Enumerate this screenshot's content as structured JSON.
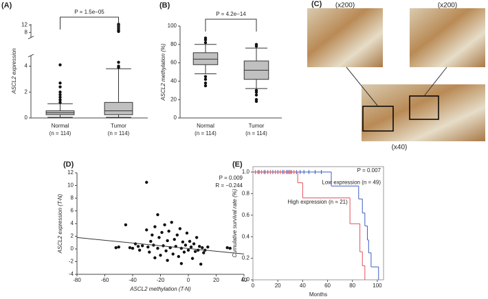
{
  "chart_data": [
    {
      "type": "box",
      "label": "(A)",
      "ylabel": "ASCL2 expression",
      "annotation": "P = 1.5e−05",
      "categories": [
        "Normal",
        "Tumor"
      ],
      "category_sublabels": [
        "(n = 114)",
        "(n = 114)"
      ],
      "ylim": [
        0,
        12.5
      ],
      "ybreak": [
        4.5,
        7.5
      ],
      "yticks": [
        0,
        2,
        4,
        8,
        12
      ],
      "color": "#c0c0c0",
      "boxes": [
        {
          "whisker_low": 0.05,
          "q1": 0.25,
          "median": 0.4,
          "q3": 0.55,
          "whisker_high": 1.1,
          "outliers": [
            1.2,
            1.4,
            1.6,
            1.8,
            2.0,
            2.4,
            2.7,
            4.1
          ]
        },
        {
          "whisker_low": 0.05,
          "q1": 0.25,
          "median": 0.55,
          "q3": 1.2,
          "whisker_high": 3.8,
          "outliers": [
            3.9,
            4.0,
            4.3,
            8.5,
            9,
            10,
            11,
            12,
            12.4
          ]
        }
      ]
    },
    {
      "type": "box",
      "label": "(B)",
      "ylabel": "ASCL2 methylation (%)",
      "annotation": "P = 4.2e−14",
      "categories": [
        "Normal",
        "Tumor"
      ],
      "category_sublabels": [
        "(n = 114)",
        "(n = 114)"
      ],
      "ylim": [
        0,
        100
      ],
      "yticks": [
        0,
        20,
        40,
        60,
        80,
        100
      ],
      "color": "#c0c0c0",
      "boxes": [
        {
          "whisker_low": 48,
          "q1": 58,
          "median": 64,
          "q3": 71,
          "whisker_high": 80,
          "outliers": [
            35,
            38,
            42,
            45,
            82,
            85,
            87
          ]
        },
        {
          "whisker_low": 32,
          "q1": 42,
          "median": 52,
          "q3": 62,
          "whisker_high": 76,
          "outliers": [
            18,
            20,
            25,
            28,
            30,
            78,
            80
          ]
        }
      ]
    },
    {
      "type": "image",
      "label": "(C)",
      "captions": [
        "(x200)",
        "(x200)",
        "(x40)"
      ]
    },
    {
      "type": "scatter",
      "label": "(D)",
      "xlabel": "ASCL2 methylation (T-N)",
      "ylabel": "ASCL2 expression (T-N)",
      "annotations": [
        "P = 0.009",
        "R = −0.244"
      ],
      "xlim": [
        -80,
        40
      ],
      "xticks": [
        -80,
        -60,
        -40,
        -20,
        0,
        20,
        40
      ],
      "ylim": [
        -4,
        12
      ],
      "yticks": [
        -4,
        -2,
        0,
        2,
        4,
        6,
        8,
        10,
        12
      ],
      "color": "#111111",
      "x": [
        -50,
        -45,
        -42,
        -38,
        -35,
        -33,
        -30,
        -30,
        -29,
        -28,
        -27,
        -26,
        -25,
        -24,
        -22,
        -22,
        -21,
        -20,
        -19,
        -18,
        -17,
        -16,
        -15,
        -14,
        -13,
        -12,
        -11,
        -10,
        -9,
        -8,
        -7,
        -6,
        -5,
        -4,
        -3,
        -2,
        -1,
        0,
        1,
        2,
        3,
        4,
        5,
        6,
        7,
        8,
        9,
        10,
        11,
        12,
        14,
        28,
        30,
        -52,
        -40,
        -36,
        -15,
        -5,
        -24
      ],
      "values": [
        0.3,
        3.8,
        0.2,
        0.8,
        -0.2,
        0.5,
        10.5,
        3,
        0.3,
        -0.5,
        1.2,
        2.2,
        0.6,
        3.5,
        5.4,
        0.1,
        1.8,
        -1,
        2.6,
        0.5,
        3.8,
        -0.3,
        1.3,
        2.8,
        0.2,
        4.2,
        -0.8,
        1.5,
        0.4,
        2.2,
        -1.2,
        3.2,
        0.1,
        1.1,
        -0.5,
        0.6,
        2.5,
        -0.2,
        1.2,
        0.3,
        -1.5,
        0.8,
        -0.4,
        1.8,
        -0.2,
        0.4,
        -2.4,
        0.2,
        -0.6,
        -0.2,
        0.3,
        0.2,
        0.1,
        0.2,
        0.1,
        0.4,
        -1.8,
        -2.3,
        -1.4
      ],
      "fit_line": {
        "x": [
          -80,
          40
        ],
        "y": [
          1.8,
          -0.8
        ]
      }
    },
    {
      "type": "survival",
      "label": "(E)",
      "xlabel": "Months",
      "ylabel": "Cumulative survival rate (%)",
      "annotation": "P = 0.007",
      "xlim": [
        0,
        105
      ],
      "xticks": [
        0,
        20,
        40,
        60,
        80,
        100
      ],
      "ylim": [
        0,
        1.05
      ],
      "yticks": [
        {
          "value": 0,
          "label": "0.0"
        },
        {
          "value": 0.2,
          "label": "0.2"
        },
        {
          "value": 0.4,
          "label": "0.4"
        },
        {
          "value": 0.6,
          "label": "0.6"
        },
        {
          "value": 0.8,
          "label": "0.8"
        },
        {
          "value": 1,
          "label": "1.0"
        }
      ],
      "series": [
        {
          "name": "Low expression (n = 49)",
          "color": "#3b5bbf",
          "x": [
            0,
            63,
            85,
            88,
            90,
            92,
            93,
            95,
            101
          ],
          "values": [
            1,
            0.87,
            0.75,
            0.62,
            0.5,
            0.37,
            0.25,
            0.12,
            0
          ],
          "censored": [
            5,
            9,
            12,
            16,
            20,
            24,
            27,
            29,
            31,
            35,
            38,
            41,
            45,
            50,
            55
          ]
        },
        {
          "name": "High expression (n = 21)",
          "color": "#e0505a",
          "x": [
            0,
            36,
            40,
            78,
            86,
            88,
            90
          ],
          "values": [
            1,
            0.9,
            0.76,
            0.52,
            0.26,
            0.13,
            0
          ],
          "censored": [
            2,
            4,
            7,
            10,
            14,
            18,
            22,
            25,
            28,
            30,
            33
          ]
        }
      ]
    }
  ]
}
